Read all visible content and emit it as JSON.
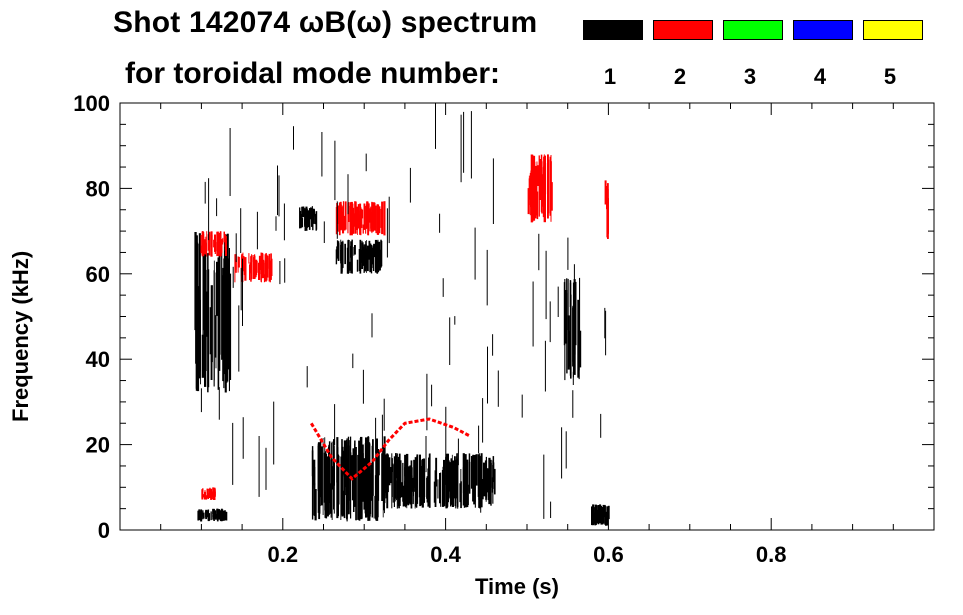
{
  "chart_data": {
    "type": "heatmap",
    "title": "Shot 142074 ωB(ω) spectrum",
    "subtitle": "for toroidal mode number:",
    "xlabel": "Time (s)",
    "ylabel": "Frequency (kHz)",
    "xlim": [
      0.0,
      1.0
    ],
    "ylim": [
      0,
      100
    ],
    "x_ticks": [
      "0.2",
      "0.4",
      "0.6",
      "0.8"
    ],
    "x_tick_values": [
      0.2,
      0.4,
      0.6,
      0.8
    ],
    "y_ticks": [
      "0",
      "20",
      "40",
      "60",
      "80",
      "100"
    ],
    "y_tick_values": [
      0,
      20,
      40,
      60,
      80,
      100
    ],
    "legend": [
      {
        "mode": "1",
        "color": "#000000"
      },
      {
        "mode": "2",
        "color": "#ff0000"
      },
      {
        "mode": "3",
        "color": "#00ff00"
      },
      {
        "mode": "4",
        "color": "#0000ff"
      },
      {
        "mode": "5",
        "color": "#ffff00"
      }
    ],
    "regions": [
      {
        "mode": "1",
        "t": [
          0.09,
          0.135
        ],
        "f": [
          32,
          70
        ]
      },
      {
        "mode": "1",
        "t": [
          0.095,
          0.13
        ],
        "f": [
          2,
          5
        ]
      },
      {
        "mode": "1",
        "t": [
          0.235,
          0.325
        ],
        "f": [
          2,
          22
        ]
      },
      {
        "mode": "1",
        "t": [
          0.325,
          0.46
        ],
        "f": [
          5,
          18
        ]
      },
      {
        "mode": "1",
        "t": [
          0.265,
          0.32
        ],
        "f": [
          60,
          68
        ]
      },
      {
        "mode": "1",
        "t": [
          0.22,
          0.245
        ],
        "f": [
          70,
          76
        ]
      },
      {
        "mode": "1",
        "t": [
          0.545,
          0.565
        ],
        "f": [
          35,
          60
        ]
      },
      {
        "mode": "1",
        "t": [
          0.578,
          0.602
        ],
        "f": [
          1,
          6
        ]
      },
      {
        "mode": "2",
        "t": [
          0.098,
          0.13
        ],
        "f": [
          64,
          70
        ]
      },
      {
        "mode": "2",
        "t": [
          0.265,
          0.325
        ],
        "f": [
          69,
          77
        ]
      },
      {
        "mode": "2",
        "t": [
          0.5,
          0.53
        ],
        "f": [
          72,
          88
        ]
      },
      {
        "mode": "2",
        "t": [
          0.14,
          0.185
        ],
        "f": [
          58,
          65
        ]
      },
      {
        "mode": "2",
        "t": [
          0.098,
          0.12
        ],
        "f": [
          7,
          10
        ]
      },
      {
        "mode": "2",
        "t": [
          0.595,
          0.6
        ],
        "f": [
          68,
          82
        ]
      }
    ],
    "chirps": [
      {
        "mode": "2",
        "points": [
          [
            0.235,
            25
          ],
          [
            0.26,
            17
          ],
          [
            0.285,
            12
          ],
          [
            0.31,
            16
          ],
          [
            0.33,
            21
          ],
          [
            0.35,
            25
          ],
          [
            0.38,
            26
          ],
          [
            0.41,
            24
          ],
          [
            0.43,
            22
          ]
        ]
      }
    ]
  }
}
